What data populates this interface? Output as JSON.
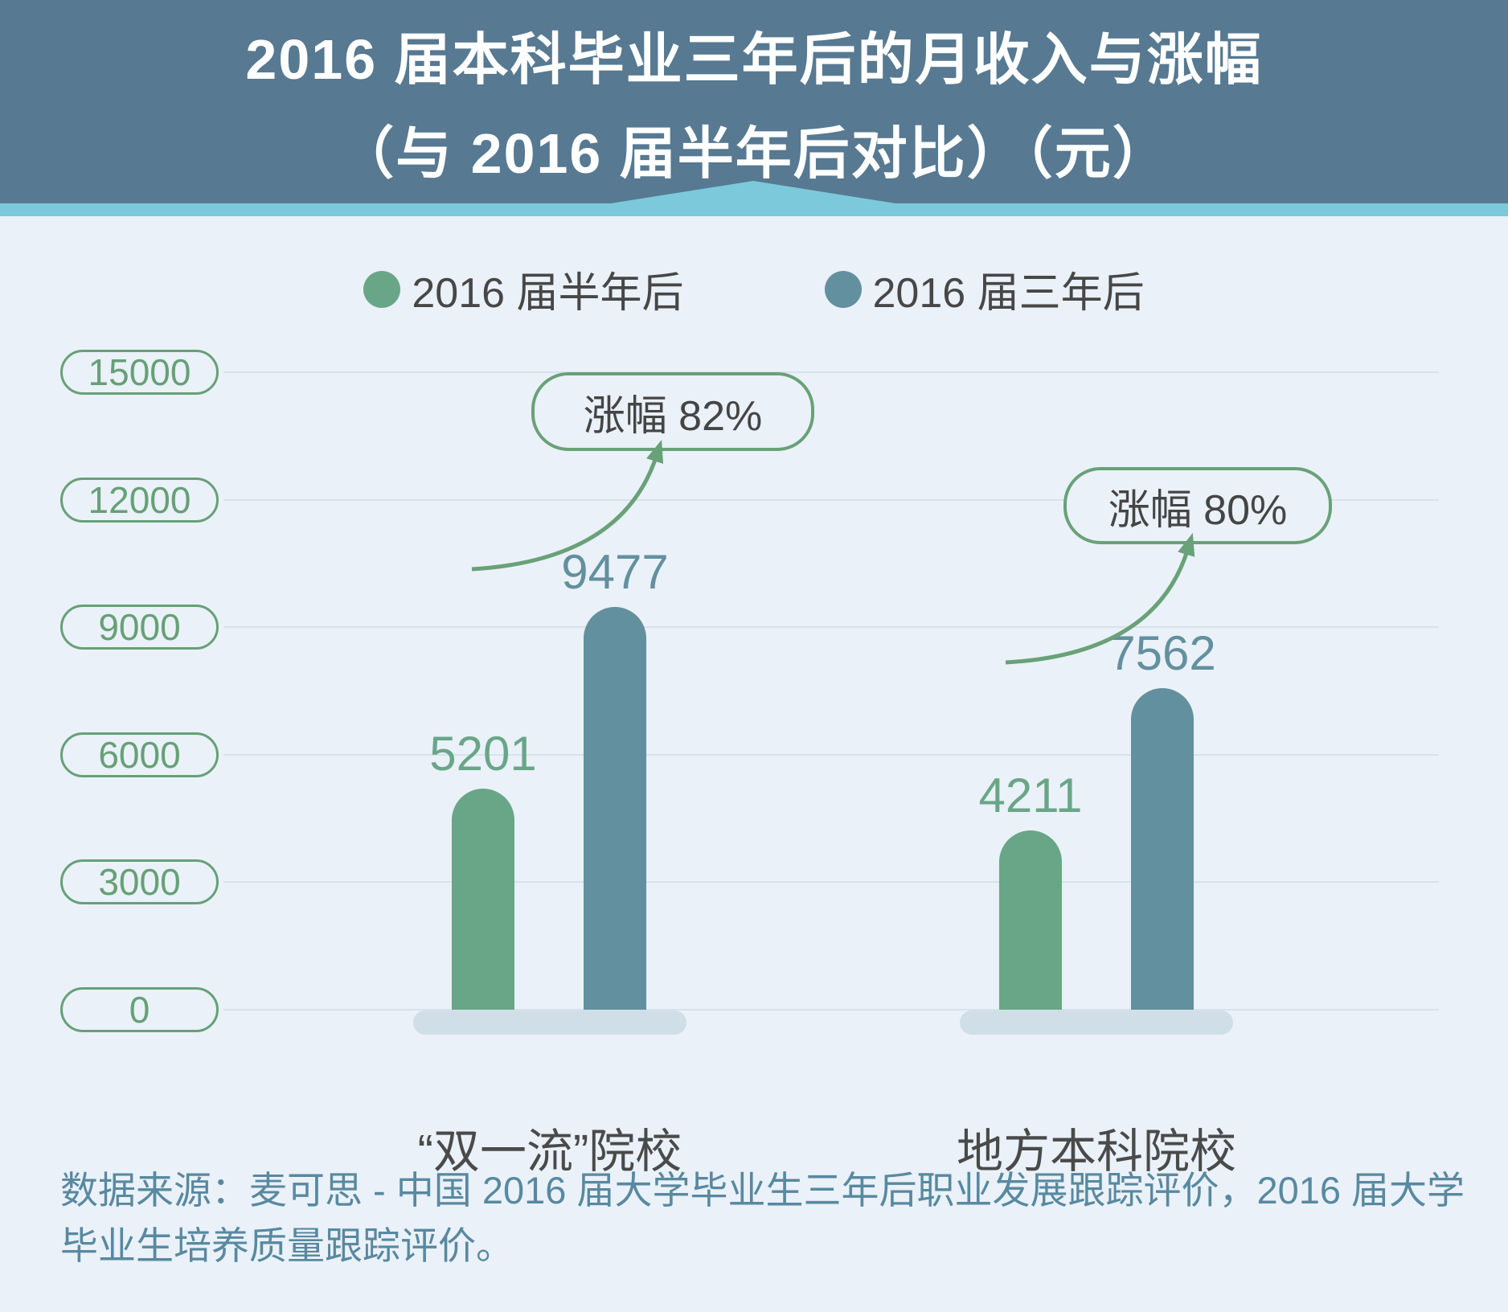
{
  "header": {
    "title_lines": [
      "2016 届本科毕业三年后的月收入与涨幅",
      "（与 2016 届半年后对比）（元）"
    ]
  },
  "legend": {
    "items": [
      {
        "label": "2016 届半年后",
        "color": "#69a688"
      },
      {
        "label": "2016 届三年后",
        "color": "#63909e"
      }
    ]
  },
  "annotations": [
    {
      "label": "涨幅 82%"
    },
    {
      "label": "涨幅 80%"
    }
  ],
  "footer": {
    "lines": [
      "数据来源：麦可思 - 中国 2016 届大学毕业生三年后职业发展跟踪评价，2016 届大学",
      "毕业生培养质量跟踪评价。"
    ]
  },
  "colors": {
    "header_bg": "#577992",
    "ribbon": "#7cc9dc",
    "page_bg": "#eaf1f8",
    "series_half_year": "#69a688",
    "series_three_year": "#63909e",
    "axis_green": "#67a077",
    "arrow_green": "#69a178",
    "platform": "#cfdee7",
    "gridline": "#d7e2ec",
    "text_dark": "#474747",
    "footer_text": "#5889a0"
  },
  "chart_data": {
    "type": "bar",
    "title": "2016 届本科毕业三年后的月收入与涨幅（与 2016 届半年后对比）（元）",
    "categories": [
      "“双一流”院校",
      "地方本科院校"
    ],
    "series": [
      {
        "name": "2016 届半年后",
        "color": "#69a688",
        "values": [
          5201,
          4211
        ]
      },
      {
        "name": "2016 届三年后",
        "color": "#63909e",
        "values": [
          9477,
          7562
        ]
      }
    ],
    "annotations": [
      {
        "label": "涨幅 82%",
        "group": "“双一流”院校",
        "value_pct": 82
      },
      {
        "label": "涨幅 80%",
        "group": "地方本科院校",
        "value_pct": 80
      }
    ],
    "xlabel": "",
    "ylabel": "",
    "ylim": [
      0,
      15000
    ],
    "yticks": [
      15000,
      12000,
      9000,
      6000,
      3000,
      0
    ],
    "grid": true,
    "legend_position": "top",
    "source_note": "数据来源：麦可思 - 中国 2016 届大学毕业生三年后职业发展跟踪评价，2016 届大学毕业生培养质量跟踪评价。"
  }
}
